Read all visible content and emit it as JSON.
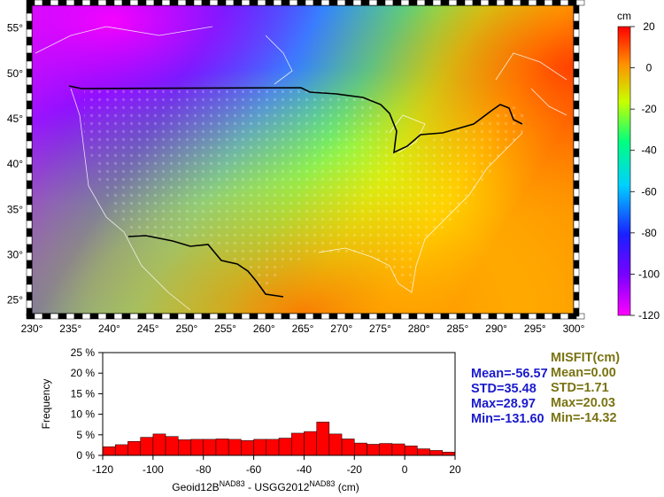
{
  "colors": {
    "hist_fill": "#ff0000",
    "stats_a": "#1a1acc",
    "stats_b": "#7a7413",
    "border_line": "#000000",
    "coast": "#ffffff"
  },
  "map": {
    "colorbar": {
      "unit": "cm",
      "ticks": [
        "20",
        "0",
        "-20",
        "-40",
        "-60",
        "-80",
        "-100",
        "-120"
      ],
      "range": [
        -120,
        20
      ],
      "palette": [
        "#ff00ff",
        "#6a00ff",
        "#2020ff",
        "#00c8ff",
        "#00ff80",
        "#c8ff00",
        "#ff8000",
        "#ff0000"
      ]
    },
    "lon_labels": [
      "230°",
      "235°",
      "240°",
      "245°",
      "250°",
      "255°",
      "260°",
      "265°",
      "270°",
      "275°",
      "280°",
      "285°",
      "290°",
      "295°",
      "300°"
    ],
    "lat_labels": [
      "25°",
      "30°",
      "35°",
      "40°",
      "45°",
      "50°",
      "55°"
    ],
    "lon_range": [
      230,
      300
    ],
    "lat_range": [
      23.5,
      57.5
    ]
  },
  "chart_data": {
    "type": "bar",
    "xlabel_main": "Geoid12B",
    "xlabel_sup1": "NAD83",
    "xlabel_mid": " - USGG2012",
    "xlabel_sup2": "NAD83",
    "xlabel_unit": " (cm)",
    "ylabel": "Frequency",
    "xlim": [
      -120,
      20
    ],
    "ylim": [
      0,
      25
    ],
    "xticks": [
      "-120",
      "-100",
      "-80",
      "-60",
      "-40",
      "-20",
      "0",
      "20"
    ],
    "yticks": [
      "0 %",
      "5 %",
      "10 %",
      "15 %",
      "20 %",
      "25 %"
    ],
    "bin_width": 5,
    "bins_start": [
      -120,
      -115,
      -110,
      -105,
      -100,
      -95,
      -90,
      -85,
      -80,
      -75,
      -70,
      -65,
      -60,
      -55,
      -50,
      -45,
      -40,
      -35,
      -30,
      -25,
      -20,
      -15,
      -10,
      -5,
      0,
      5,
      10,
      15
    ],
    "values": [
      2.1,
      2.6,
      3.4,
      4.4,
      5.2,
      4.6,
      3.8,
      3.9,
      3.9,
      4.0,
      3.9,
      3.6,
      3.9,
      3.9,
      4.2,
      5.4,
      5.8,
      8.1,
      5.2,
      4.0,
      3.0,
      2.7,
      2.9,
      2.8,
      2.3,
      1.6,
      1.2,
      0.8
    ]
  },
  "stats": {
    "left": [
      "Mean=-56.57",
      "STD=35.48",
      "Max=28.97",
      "Min=-131.60"
    ],
    "right_title": "MISFIT(cm)",
    "right": [
      "Mean=0.00",
      "STD=1.71",
      "Max=20.03",
      "Min=-14.32"
    ]
  }
}
